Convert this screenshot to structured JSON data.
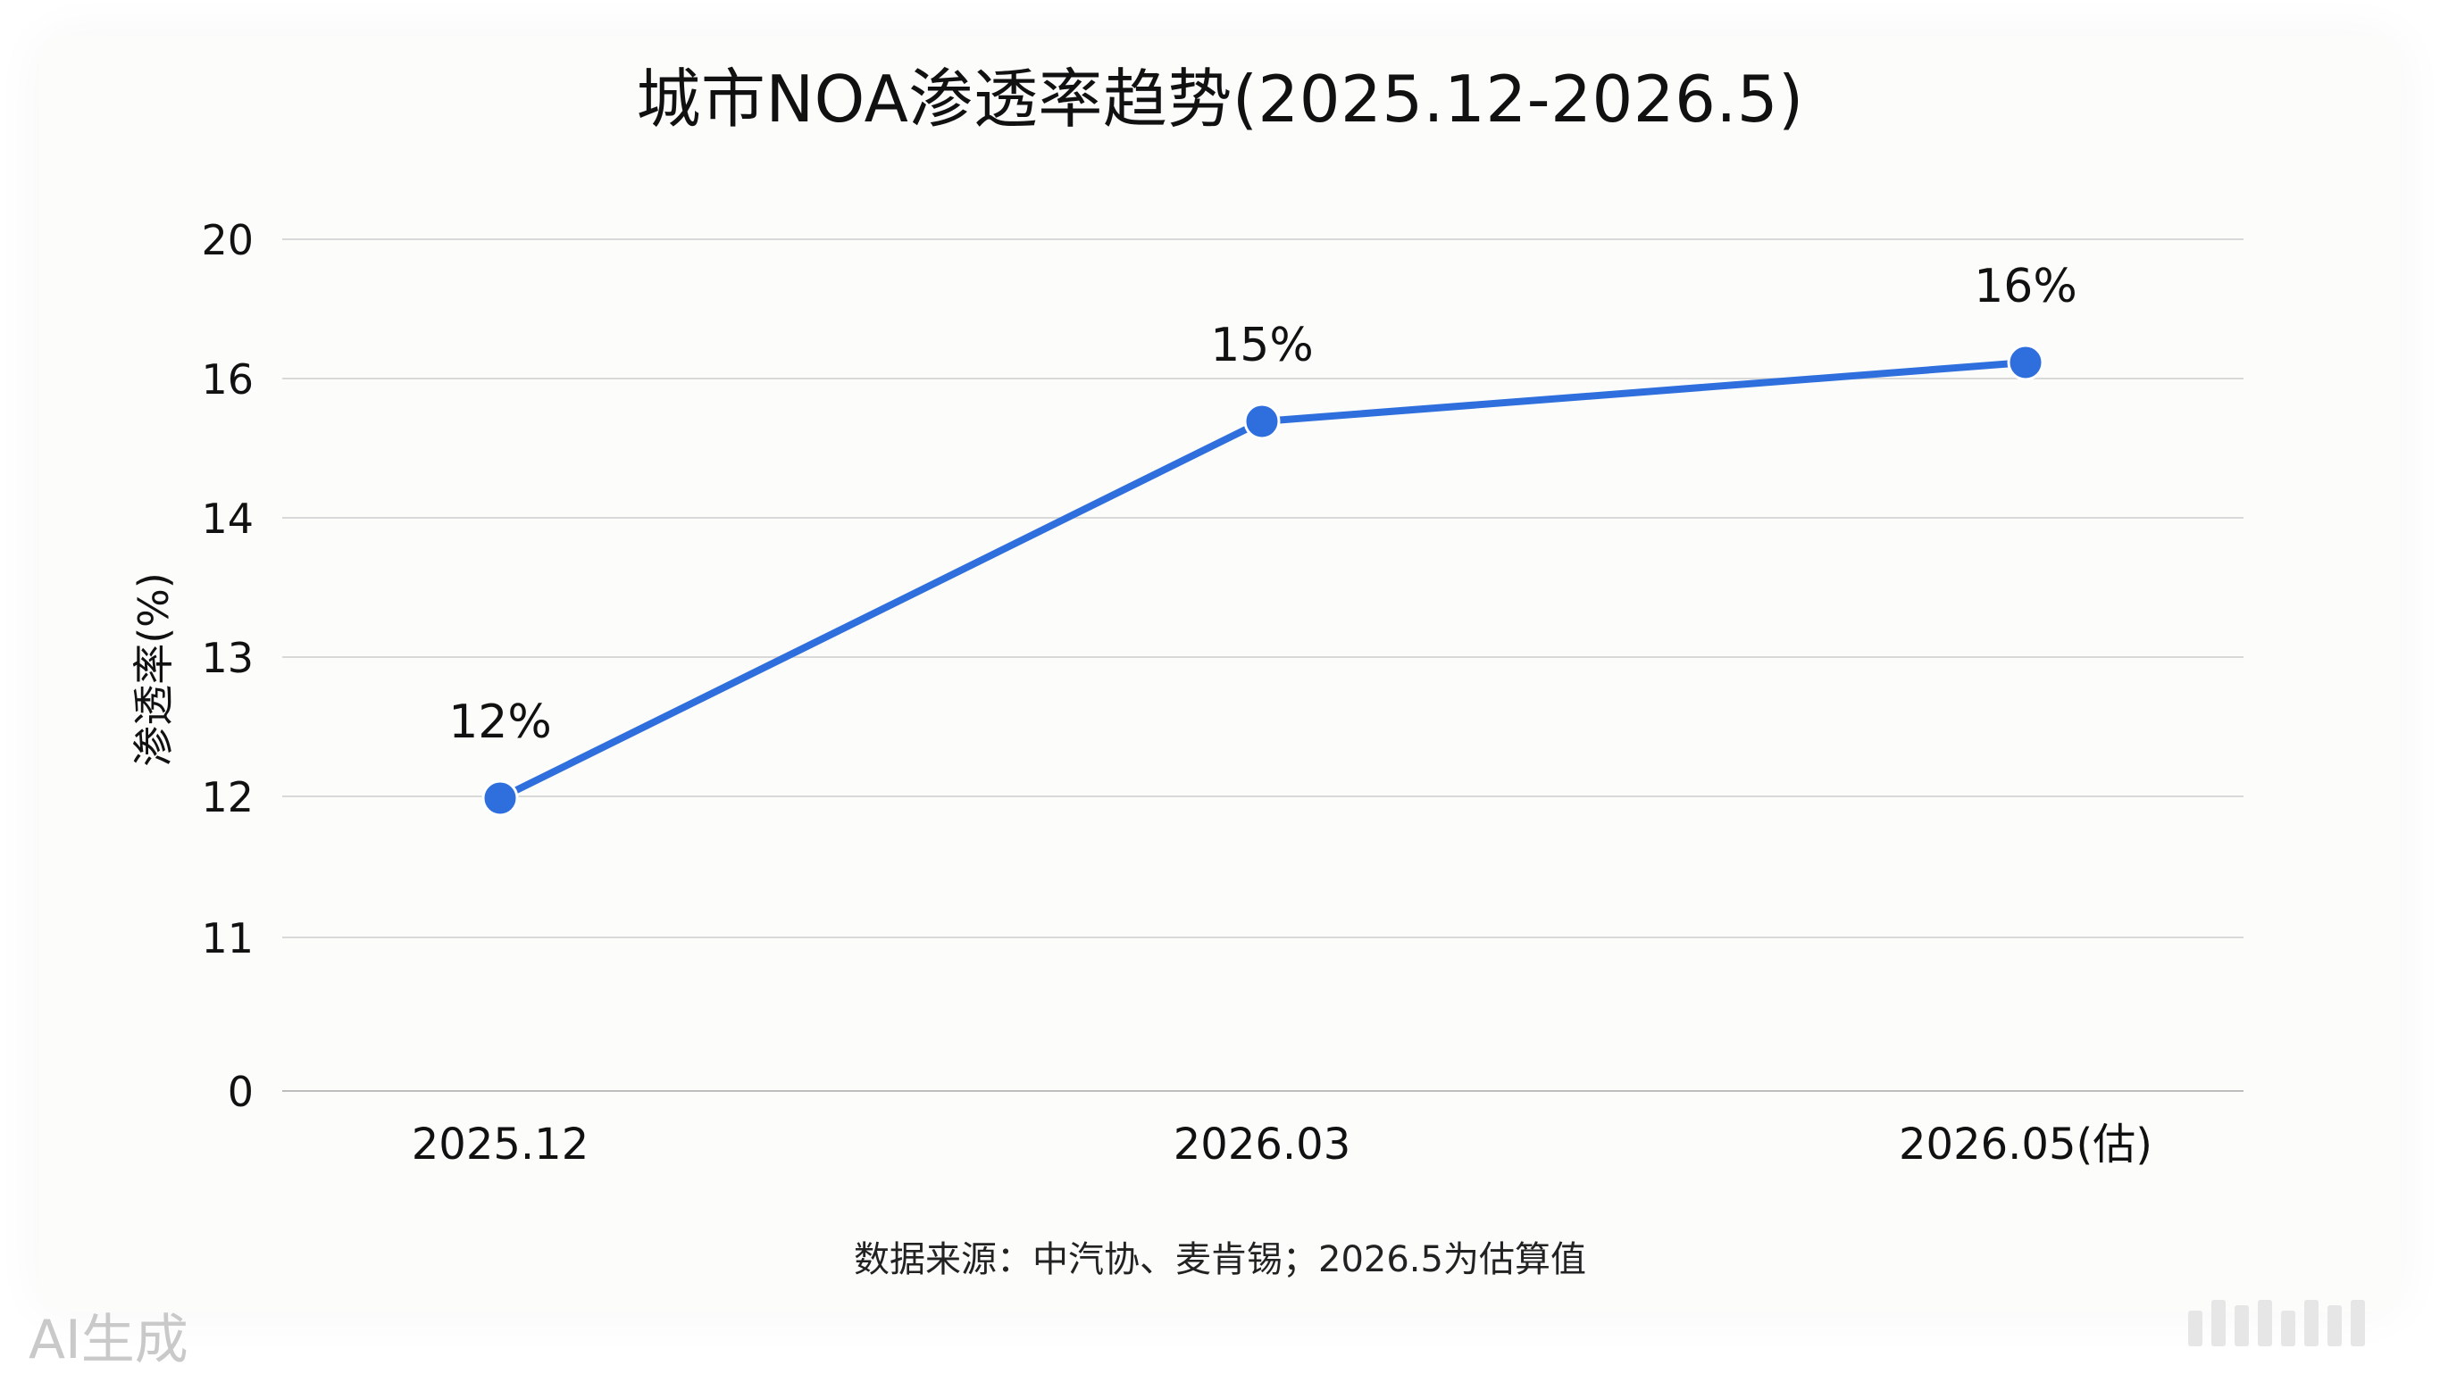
{
  "title": "城市NOA渗透率趋势(2025.12-2026.5)",
  "source": "数据来源：中汽协、麦肯锡；2026.5为估算值",
  "watermark": "AI生成",
  "colors": {
    "line": "#2f6fdd",
    "grid": "#d9d9d9",
    "text": "#111111"
  },
  "chart_data": {
    "type": "line",
    "title": "城市NOA渗透率趋势(2025.12-2026.5)",
    "xlabel": "",
    "ylabel": "渗透率(%)",
    "categories": [
      "2025.12",
      "2026.03",
      "2026.05(估)"
    ],
    "yticks": [
      "20",
      "16",
      "14",
      "13",
      "12",
      "11",
      "0"
    ],
    "series": [
      {
        "values": [
          12,
          15,
          16
        ],
        "labels": [
          "12%",
          "15%",
          "16%"
        ]
      }
    ],
    "grid": true,
    "legend": "none"
  }
}
